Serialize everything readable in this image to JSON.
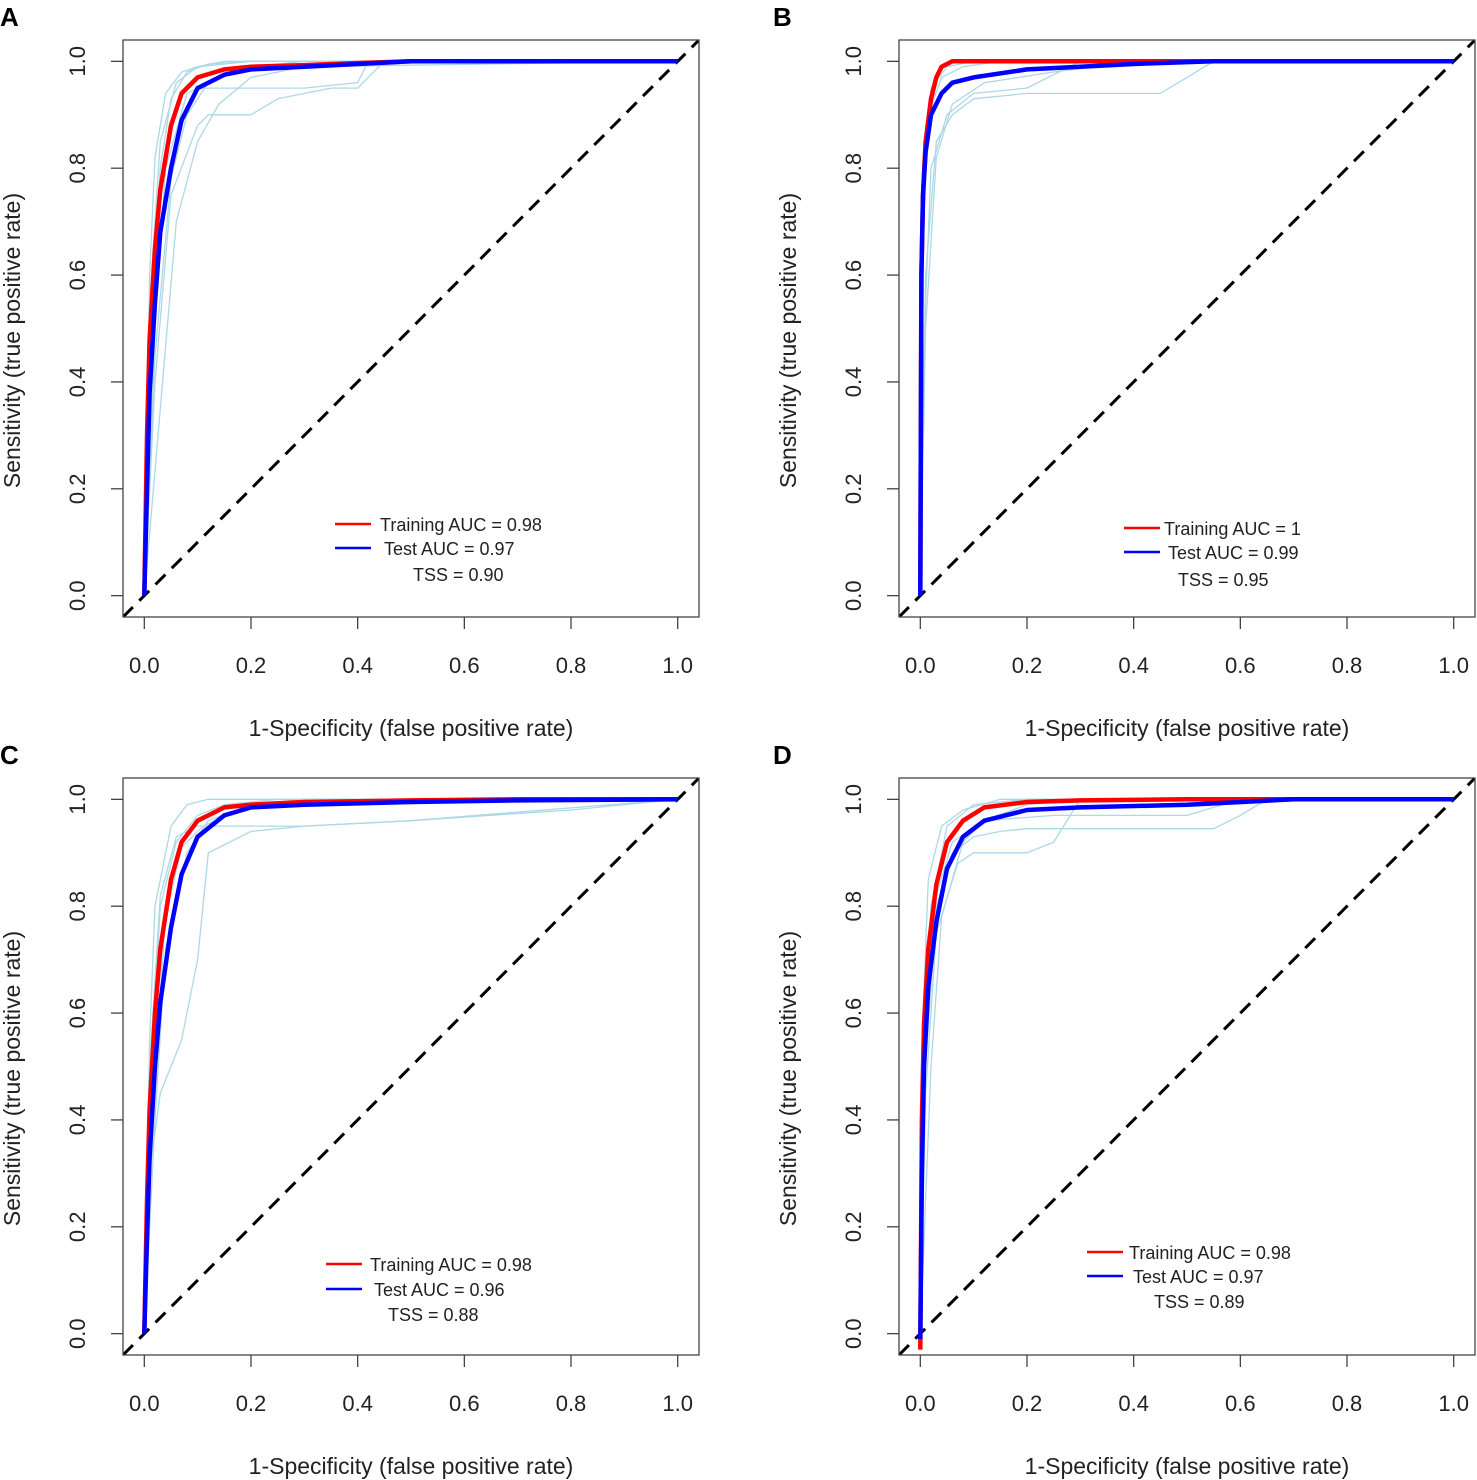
{
  "colors": {
    "training": "#ff0000",
    "test": "#0000ff",
    "replicate": "#add8e6",
    "reference": "#000000"
  },
  "chart_data": [
    {
      "type": "line",
      "panel": "A",
      "xlabel": "1-Specificity (false positive rate)",
      "ylabel": "Sensitivity (true positive rate)",
      "xlim": [
        0,
        1
      ],
      "ylim": [
        0,
        1
      ],
      "xticks": [
        "0.0",
        "0.2",
        "0.4",
        "0.6",
        "0.8",
        "1.0"
      ],
      "yticks": [
        "0.0",
        "0.2",
        "0.4",
        "0.6",
        "0.8",
        "1.0"
      ],
      "legend": {
        "position": "bottom-center",
        "training_label": "Training AUC = 0.98",
        "test_label": "Test AUC = 0.97",
        "tss_label": "TSS = 0.90"
      },
      "series": [
        {
          "name": "Training",
          "x": [
            0,
            0.005,
            0.01,
            0.02,
            0.03,
            0.05,
            0.07,
            0.1,
            0.15,
            0.2,
            0.3,
            0.4,
            0.5,
            0.7,
            1.0
          ],
          "y": [
            0,
            0.3,
            0.48,
            0.65,
            0.76,
            0.88,
            0.94,
            0.97,
            0.985,
            0.99,
            0.993,
            0.997,
            1.0,
            1.0,
            1.0
          ]
        },
        {
          "name": "Test",
          "x": [
            0,
            0.005,
            0.01,
            0.02,
            0.03,
            0.05,
            0.07,
            0.1,
            0.15,
            0.2,
            0.3,
            0.4,
            0.5,
            0.7,
            1.0
          ],
          "y": [
            0,
            0.2,
            0.38,
            0.55,
            0.68,
            0.8,
            0.89,
            0.95,
            0.975,
            0.985,
            0.99,
            0.995,
            1.0,
            1.0,
            1.0
          ]
        }
      ],
      "replicates": [
        {
          "x": [
            0,
            0.01,
            0.03,
            0.05,
            0.08,
            0.12,
            0.2,
            0.3,
            0.4,
            1.0
          ],
          "y": [
            0,
            0.5,
            0.8,
            0.93,
            0.98,
            0.995,
            1,
            1,
            1,
            1
          ]
        },
        {
          "x": [
            0,
            0.02,
            0.05,
            0.1,
            0.12,
            0.2,
            0.25,
            0.35,
            0.4,
            0.45,
            1.0
          ],
          "y": [
            0,
            0.4,
            0.75,
            0.88,
            0.9,
            0.9,
            0.93,
            0.95,
            0.95,
            1,
            1
          ]
        },
        {
          "x": [
            0,
            0.02,
            0.04,
            0.08,
            0.1,
            0.2,
            0.3,
            0.4,
            0.42,
            1.0
          ],
          "y": [
            0,
            0.5,
            0.8,
            0.94,
            0.95,
            0.95,
            0.95,
            0.96,
            1,
            1
          ]
        },
        {
          "x": [
            0,
            0.01,
            0.03,
            0.06,
            0.1,
            0.15,
            0.3,
            1.0
          ],
          "y": [
            0,
            0.55,
            0.85,
            0.96,
            0.99,
            1,
            1,
            1
          ]
        },
        {
          "x": [
            0,
            0.03,
            0.06,
            0.1,
            0.14,
            0.2,
            0.3,
            1.0
          ],
          "y": [
            0,
            0.35,
            0.7,
            0.85,
            0.92,
            0.97,
            0.99,
            1
          ]
        },
        {
          "x": [
            0,
            0.02,
            0.05,
            0.08,
            0.12,
            0.2,
            0.3,
            1.0
          ],
          "y": [
            0,
            0.45,
            0.78,
            0.9,
            0.96,
            0.99,
            1,
            1
          ]
        },
        {
          "x": [
            0,
            0.01,
            0.02,
            0.04,
            0.07,
            0.1,
            0.2,
            1.0
          ],
          "y": [
            0,
            0.6,
            0.82,
            0.94,
            0.98,
            0.99,
            1,
            1
          ]
        }
      ]
    },
    {
      "type": "line",
      "panel": "B",
      "xlabel": "1-Specificity (false positive rate)",
      "ylabel": "Sensitivity (true positive rate)",
      "xlim": [
        0,
        1
      ],
      "ylim": [
        0,
        1
      ],
      "xticks": [
        "0.0",
        "0.2",
        "0.4",
        "0.6",
        "0.8",
        "1.0"
      ],
      "yticks": [
        "0.0",
        "0.2",
        "0.4",
        "0.6",
        "0.8",
        "1.0"
      ],
      "legend": {
        "position": "bottom-center",
        "training_label": "Training AUC = 1",
        "test_label": "Test AUC = 0.99",
        "tss_label": "TSS = 0.95"
      },
      "series": [
        {
          "name": "Training",
          "x": [
            0,
            0.002,
            0.005,
            0.01,
            0.02,
            0.03,
            0.04,
            0.06,
            0.1,
            0.2,
            0.5,
            1.0
          ],
          "y": [
            0,
            0.6,
            0.75,
            0.85,
            0.93,
            0.97,
            0.99,
            1.0,
            1.0,
            1.0,
            1.0,
            1.0
          ]
        },
        {
          "name": "Test",
          "x": [
            0,
            0.002,
            0.005,
            0.01,
            0.02,
            0.04,
            0.06,
            0.1,
            0.2,
            0.3,
            0.4,
            0.55,
            1.0
          ],
          "y": [
            0,
            0.6,
            0.75,
            0.83,
            0.9,
            0.94,
            0.96,
            0.97,
            0.985,
            0.99,
            0.995,
            1.0,
            1.0
          ]
        }
      ],
      "replicates": [
        {
          "x": [
            0,
            0.005,
            0.02,
            0.05,
            0.1,
            0.2,
            1.0
          ],
          "y": [
            0,
            0.7,
            0.95,
            0.99,
            1,
            1,
            1
          ]
        },
        {
          "x": [
            0,
            0.01,
            0.03,
            0.06,
            0.1,
            0.2,
            0.3,
            0.45,
            0.5,
            0.55,
            1.0
          ],
          "y": [
            0,
            0.6,
            0.85,
            0.9,
            0.93,
            0.94,
            0.94,
            0.94,
            0.97,
            1,
            1
          ]
        },
        {
          "x": [
            0,
            0.01,
            0.02,
            0.05,
            0.1,
            0.2,
            0.3,
            1.0
          ],
          "y": [
            0,
            0.55,
            0.8,
            0.9,
            0.94,
            0.95,
            1,
            1
          ]
        },
        {
          "x": [
            0,
            0.005,
            0.015,
            0.04,
            0.08,
            0.15,
            0.3,
            1.0
          ],
          "y": [
            0,
            0.65,
            0.9,
            0.97,
            0.99,
            1,
            1,
            1
          ]
        },
        {
          "x": [
            0,
            0.01,
            0.03,
            0.06,
            0.12,
            0.25,
            0.4,
            1.0
          ],
          "y": [
            0,
            0.5,
            0.82,
            0.92,
            0.96,
            0.98,
            1,
            1
          ]
        }
      ]
    },
    {
      "type": "line",
      "panel": "C",
      "xlabel": "1-Specificity (false positive rate)",
      "ylabel": "Sensitivity (true positive rate)",
      "xlim": [
        0,
        1
      ],
      "ylim": [
        0,
        1
      ],
      "xticks": [
        "0.0",
        "0.2",
        "0.4",
        "0.6",
        "0.8",
        "1.0"
      ],
      "yticks": [
        "0.0",
        "0.2",
        "0.4",
        "0.6",
        "0.8",
        "1.0"
      ],
      "legend": {
        "position": "bottom-center",
        "training_label": "Training AUC = 0.98",
        "test_label": "Test AUC = 0.96",
        "tss_label": "TSS = 0.88"
      },
      "series": [
        {
          "name": "Training",
          "x": [
            0,
            0.005,
            0.01,
            0.02,
            0.03,
            0.05,
            0.07,
            0.1,
            0.15,
            0.2,
            0.3,
            0.5,
            0.7,
            1.0
          ],
          "y": [
            0,
            0.25,
            0.42,
            0.6,
            0.72,
            0.85,
            0.92,
            0.96,
            0.985,
            0.99,
            0.995,
            0.998,
            1.0,
            1.0
          ]
        },
        {
          "name": "Test",
          "x": [
            0,
            0.005,
            0.01,
            0.02,
            0.03,
            0.05,
            0.07,
            0.1,
            0.15,
            0.2,
            0.3,
            0.5,
            0.7,
            1.0
          ],
          "y": [
            0,
            0.18,
            0.33,
            0.5,
            0.62,
            0.76,
            0.86,
            0.93,
            0.97,
            0.985,
            0.99,
            0.995,
            0.998,
            1.0
          ]
        }
      ],
      "replicates": [
        {
          "x": [
            0,
            0.01,
            0.03,
            0.05,
            0.07,
            0.1,
            0.12,
            0.2,
            0.3,
            0.5,
            1.0
          ],
          "y": [
            0,
            0.3,
            0.45,
            0.5,
            0.55,
            0.7,
            0.9,
            0.94,
            0.95,
            0.96,
            1
          ]
        },
        {
          "x": [
            0,
            0.01,
            0.03,
            0.06,
            0.1,
            0.2,
            0.3,
            0.5,
            0.8,
            1.0
          ],
          "y": [
            0,
            0.5,
            0.82,
            0.93,
            0.95,
            0.95,
            0.95,
            0.96,
            0.98,
            1
          ]
        },
        {
          "x": [
            0,
            0.01,
            0.02,
            0.05,
            0.08,
            0.12,
            0.2,
            1.0
          ],
          "y": [
            0,
            0.55,
            0.8,
            0.95,
            0.99,
            1,
            1,
            1
          ]
        },
        {
          "x": [
            0,
            0.02,
            0.04,
            0.08,
            0.12,
            0.2,
            0.3,
            1.0
          ],
          "y": [
            0,
            0.4,
            0.72,
            0.9,
            0.96,
            0.99,
            1,
            1
          ]
        },
        {
          "x": [
            0,
            0.01,
            0.03,
            0.06,
            0.1,
            0.15,
            0.25,
            1.0
          ],
          "y": [
            0,
            0.45,
            0.8,
            0.92,
            0.97,
            0.99,
            1,
            1
          ]
        },
        {
          "x": [
            0,
            0.015,
            0.04,
            0.07,
            0.11,
            0.18,
            0.3,
            1.0
          ],
          "y": [
            0,
            0.42,
            0.78,
            0.91,
            0.95,
            0.98,
            1,
            1
          ]
        }
      ]
    },
    {
      "type": "line",
      "panel": "D",
      "xlabel": "1-Specificity (false positive rate)",
      "ylabel": "Sensitivity (true positive rate)",
      "xlim": [
        0,
        1
      ],
      "ylim": [
        0,
        1
      ],
      "xticks": [
        "0.0",
        "0.2",
        "0.4",
        "0.6",
        "0.8",
        "1.0"
      ],
      "yticks": [
        "0.0",
        "0.2",
        "0.4",
        "0.6",
        "0.8",
        "1.0"
      ],
      "legend": {
        "position": "bottom-center",
        "training_label": "Training AUC = 0.98",
        "test_label": "Test AUC = 0.97",
        "tss_label": "TSS = 0.89"
      },
      "series": [
        {
          "name": "Training",
          "x": [
            0,
            0.003,
            0.007,
            0.015,
            0.03,
            0.05,
            0.08,
            0.12,
            0.2,
            0.3,
            0.5,
            0.7,
            1.0
          ],
          "y": [
            -0.03,
            0.4,
            0.58,
            0.72,
            0.84,
            0.92,
            0.96,
            0.985,
            0.995,
            0.998,
            1.0,
            1.0,
            1.0
          ]
        },
        {
          "name": "Test",
          "x": [
            0,
            0.003,
            0.007,
            0.015,
            0.03,
            0.05,
            0.08,
            0.12,
            0.2,
            0.3,
            0.5,
            0.7,
            1.0
          ],
          "y": [
            -0.01,
            0.3,
            0.5,
            0.65,
            0.77,
            0.87,
            0.93,
            0.96,
            0.98,
            0.985,
            0.99,
            1.0,
            1.0
          ]
        }
      ],
      "replicates": [
        {
          "x": [
            0,
            0.01,
            0.03,
            0.06,
            0.1,
            0.15,
            0.2,
            0.4,
            0.55,
            0.6,
            0.65,
            1.0
          ],
          "y": [
            0,
            0.5,
            0.8,
            0.9,
            0.93,
            0.94,
            0.945,
            0.945,
            0.945,
            0.97,
            1,
            1
          ]
        },
        {
          "x": [
            0,
            0.01,
            0.02,
            0.05,
            0.1,
            0.2,
            0.5,
            1.0
          ],
          "y": [
            0,
            0.6,
            0.8,
            0.95,
            0.99,
            1,
            1,
            1
          ]
        },
        {
          "x": [
            0,
            0.01,
            0.03,
            0.07,
            0.1,
            0.15,
            0.2,
            0.25,
            0.3,
            1.0
          ],
          "y": [
            0,
            0.45,
            0.75,
            0.88,
            0.9,
            0.9,
            0.9,
            0.92,
            1,
            1
          ]
        },
        {
          "x": [
            0,
            0.02,
            0.04,
            0.08,
            0.12,
            0.2,
            0.3,
            1.0
          ],
          "y": [
            0,
            0.5,
            0.78,
            0.92,
            0.96,
            0.99,
            1,
            1
          ]
        },
        {
          "x": [
            0,
            0.005,
            0.015,
            0.04,
            0.08,
            0.15,
            0.3,
            1.0
          ],
          "y": [
            0,
            0.6,
            0.85,
            0.95,
            0.98,
            1,
            1,
            1
          ]
        },
        {
          "x": [
            0,
            0.01,
            0.03,
            0.06,
            0.12,
            0.25,
            0.5,
            0.6,
            1.0
          ],
          "y": [
            0,
            0.55,
            0.82,
            0.92,
            0.96,
            0.97,
            0.97,
            1,
            1
          ]
        }
      ]
    }
  ]
}
